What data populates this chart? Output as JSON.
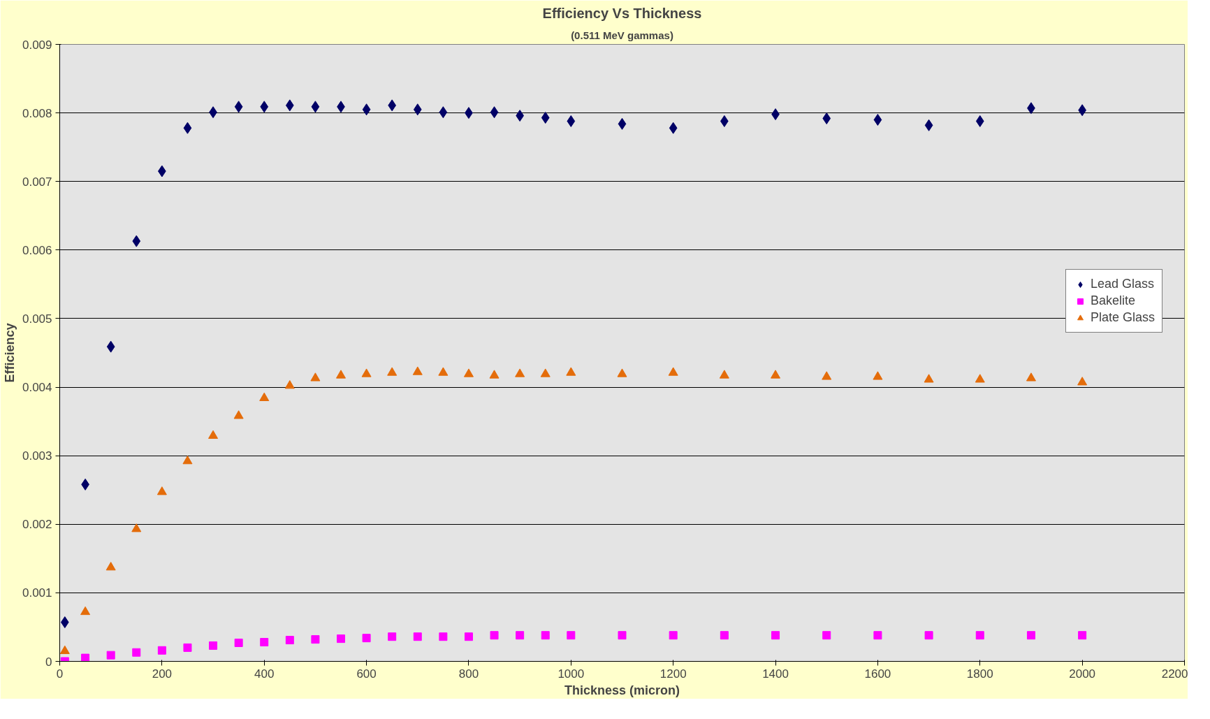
{
  "chart_data": {
    "type": "scatter",
    "title": "Efficiency Vs Thickness",
    "subtitle": "(0.511 MeV gammas)",
    "xlabel": "Thickness (micron)",
    "ylabel": "Efficiency",
    "x": [
      10,
      50,
      100,
      150,
      200,
      250,
      300,
      350,
      400,
      450,
      500,
      550,
      600,
      650,
      700,
      750,
      800,
      850,
      900,
      950,
      1000,
      1100,
      1200,
      1300,
      1400,
      1500,
      1600,
      1700,
      1800,
      1900,
      2000
    ],
    "series": [
      {
        "name": "Lead Glass",
        "color": "#000066",
        "marker": "diamond",
        "values": [
          0.00057,
          0.00258,
          0.00459,
          0.00613,
          0.00715,
          0.00778,
          0.00801,
          0.00809,
          0.00809,
          0.00811,
          0.00809,
          0.00809,
          0.00805,
          0.00811,
          0.00805,
          0.00801,
          0.008,
          0.00801,
          0.00796,
          0.00793,
          0.00788,
          0.00784,
          0.00778,
          0.00788,
          0.00798,
          0.00792,
          0.0079,
          0.00782,
          0.00788,
          0.00807,
          0.00804
        ]
      },
      {
        "name": "Bakelite",
        "color": "#ff00ff",
        "marker": "square",
        "values": [
          0,
          5e-05,
          9e-05,
          0.00013,
          0.00016,
          0.0002,
          0.00023,
          0.00027,
          0.00028,
          0.00031,
          0.00032,
          0.00033,
          0.00034,
          0.00036,
          0.00036,
          0.00036,
          0.00036,
          0.00038,
          0.00038,
          0.00038,
          0.00038,
          0.00038,
          0.00038,
          0.00038,
          0.00038,
          0.00038,
          0.00038,
          0.00038,
          0.00038,
          0.00038,
          0.00038
        ]
      },
      {
        "name": "Plate Glass",
        "color": "#e46c0a",
        "marker": "triangle",
        "values": [
          0.00015,
          0.00072,
          0.00137,
          0.00193,
          0.00247,
          0.00292,
          0.00329,
          0.00358,
          0.00384,
          0.00402,
          0.00413,
          0.00417,
          0.00419,
          0.00421,
          0.00422,
          0.00421,
          0.00419,
          0.00417,
          0.00419,
          0.00419,
          0.00421,
          0.00419,
          0.00421,
          0.00417,
          0.00417,
          0.00415,
          0.00415,
          0.00411,
          0.00411,
          0.00413,
          0.00407
        ]
      }
    ],
    "xlim": [
      0,
      2200
    ],
    "xticks": [
      0,
      200,
      400,
      600,
      800,
      1000,
      1200,
      1400,
      1600,
      1800,
      2000,
      2200
    ],
    "ylim": [
      0,
      0.009
    ],
    "yticks": [
      0,
      0.001,
      0.002,
      0.003,
      0.004,
      0.005,
      0.006,
      0.007,
      0.008,
      0.009
    ],
    "grid": "y",
    "legend": "right"
  }
}
